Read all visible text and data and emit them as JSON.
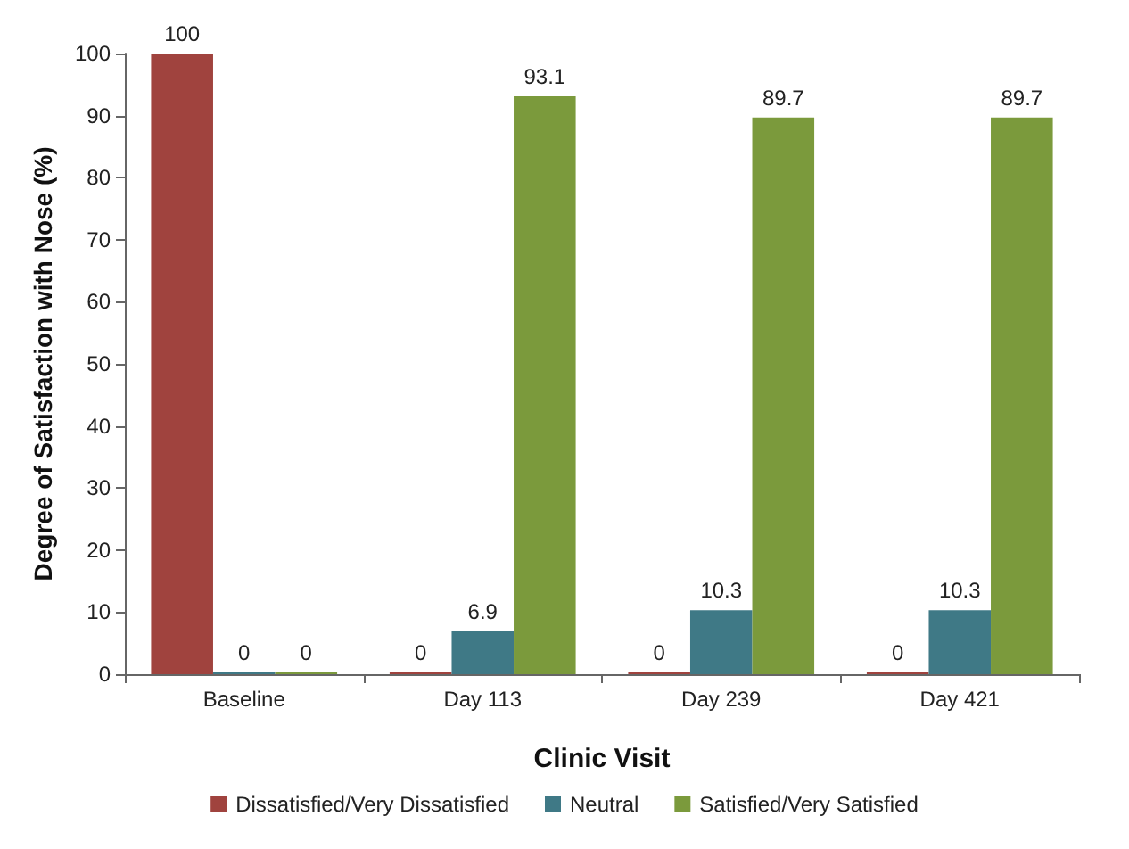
{
  "chart_data": {
    "type": "bar",
    "xlabel": "Clinic Visit",
    "ylabel": "Degree of Satisfaction with Nose (%)",
    "categories": [
      "Baseline",
      "Day 113",
      "Day 239",
      "Day 421"
    ],
    "series": [
      {
        "name": "Dissatisfied/Very Dissatisfied",
        "color": "#a0433e",
        "values": [
          100,
          0,
          0,
          0
        ]
      },
      {
        "name": "Neutral",
        "color": "#3f7986",
        "values": [
          0,
          6.9,
          10.3,
          10.3
        ]
      },
      {
        "name": "Satisfied/Very Satisfied",
        "color": "#7b9a3c",
        "values": [
          0,
          93.1,
          89.7,
          89.7
        ]
      }
    ],
    "ylim": [
      0,
      100
    ],
    "yticks": [
      0,
      10,
      20,
      30,
      40,
      50,
      60,
      70,
      80,
      90,
      100
    ],
    "grid": false,
    "legend": "bottom",
    "data_labels": true
  }
}
